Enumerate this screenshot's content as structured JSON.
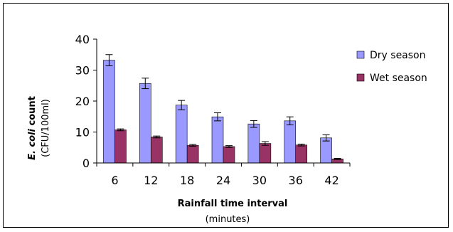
{
  "chart_data": {
    "type": "bar",
    "categories": [
      "6",
      "12",
      "18",
      "24",
      "30",
      "36",
      "42"
    ],
    "series": [
      {
        "name": "Dry season",
        "color": "#9999ff",
        "values": [
          33.2,
          25.7,
          18.7,
          14.9,
          12.6,
          13.6,
          8.1
        ],
        "errors": [
          1.8,
          1.7,
          1.5,
          1.3,
          1.1,
          1.3,
          1.0
        ]
      },
      {
        "name": "Wet season",
        "color": "#993366",
        "values": [
          10.7,
          8.4,
          5.7,
          5.3,
          6.3,
          5.8,
          1.3
        ],
        "errors": [
          0.3,
          0.3,
          0.3,
          0.3,
          0.6,
          0.3,
          0.2
        ]
      }
    ],
    "ylim": [
      0,
      40
    ],
    "yticks": [
      "0",
      "10",
      "20",
      "30",
      "40"
    ],
    "ylabel": {
      "line1_italic": "E. coli",
      "line1_bold": " count",
      "line2": "(CFU/100ml)"
    },
    "xlabel": {
      "line1": "Rainfall time interval",
      "line2": "(minutes)"
    },
    "grid": false,
    "legend_position": "right"
  }
}
